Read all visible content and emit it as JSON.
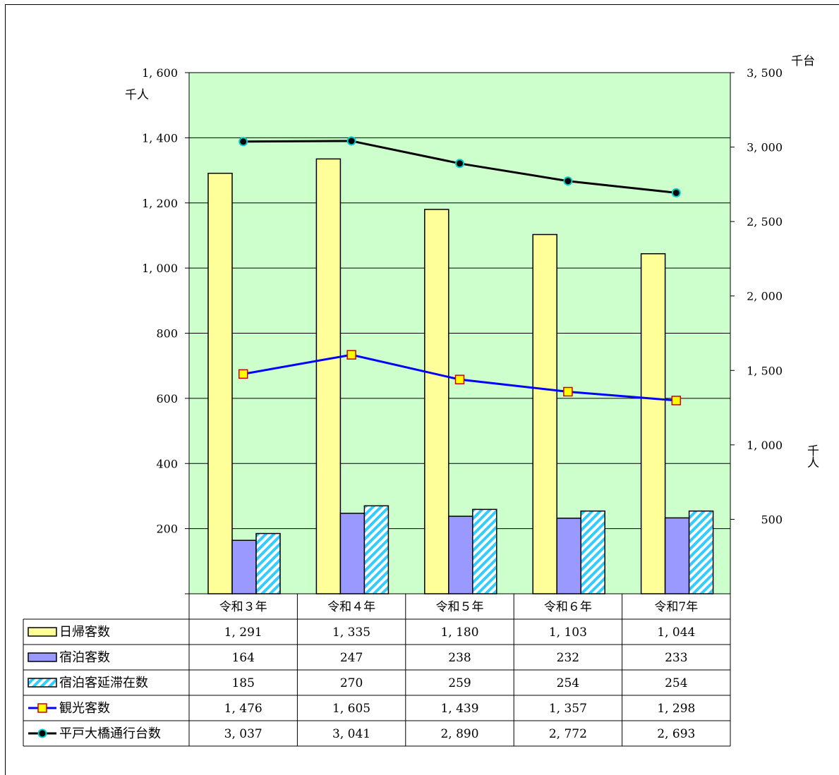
{
  "chart_data": {
    "type": "bar",
    "categories": [
      "令和３年",
      "令和４年",
      "令和５年",
      "令和６年",
      "令和7年"
    ],
    "y_left": {
      "unit": "千人",
      "ylim": [
        0,
        1600
      ],
      "ticks": [
        200,
        400,
        600,
        800,
        1000,
        1200,
        1400,
        1600
      ],
      "tick_labels": [
        "200",
        "400",
        "600",
        "800",
        "1, 000",
        "1, 200",
        "1, 400",
        "1, 600"
      ]
    },
    "y_right": {
      "units": [
        "千台",
        "千人"
      ],
      "ylim": [
        0,
        3500
      ],
      "ticks": [
        500,
        1000,
        1500,
        2000,
        2500,
        3000,
        3500
      ],
      "tick_labels": [
        "500",
        "1, 000",
        "1, 500",
        "2, 000",
        "2, 500",
        "3, 000",
        "3, 500"
      ]
    },
    "grid": true,
    "series": [
      {
        "name": "日帰客数",
        "type": "bar",
        "axis": "left",
        "color": "#FFFF99",
        "values": [
          1291,
          1335,
          1180,
          1103,
          1044
        ],
        "labels": [
          "1, 291",
          "1, 335",
          "1, 180",
          "1, 103",
          "1, 044"
        ]
      },
      {
        "name": "宿泊客数",
        "type": "bar",
        "axis": "left",
        "color": "#9999FF",
        "values": [
          164,
          247,
          238,
          232,
          233
        ],
        "labels": [
          "164",
          "247",
          "238",
          "232",
          "233"
        ]
      },
      {
        "name": "宿泊客延滞在数",
        "type": "bar",
        "axis": "left",
        "color": "#33CCFF",
        "pattern": "diagonal-stripes",
        "values": [
          185,
          270,
          259,
          254,
          254
        ],
        "labels": [
          "185",
          "270",
          "259",
          "254",
          "254"
        ]
      },
      {
        "name": "観光客数",
        "type": "line",
        "axis": "right",
        "color": "#0000FF",
        "marker": "square",
        "marker_color": "#FFFF00",
        "values": [
          1476,
          1605,
          1439,
          1357,
          1298
        ],
        "labels": [
          "1, 476",
          "1, 605",
          "1, 439",
          "1, 357",
          "1, 298"
        ]
      },
      {
        "name": "平戸大橋通行台数",
        "type": "line",
        "axis": "right",
        "color": "#000000",
        "marker": "circle",
        "marker_color": "#00CCCC",
        "values": [
          3037,
          3041,
          2890,
          2772,
          2693
        ],
        "labels": [
          "3, 037",
          "3, 041",
          "2, 890",
          "2, 772",
          "2, 693"
        ]
      }
    ],
    "plot_background": "#CCFFCC",
    "legend_placement": "data-table-below"
  }
}
